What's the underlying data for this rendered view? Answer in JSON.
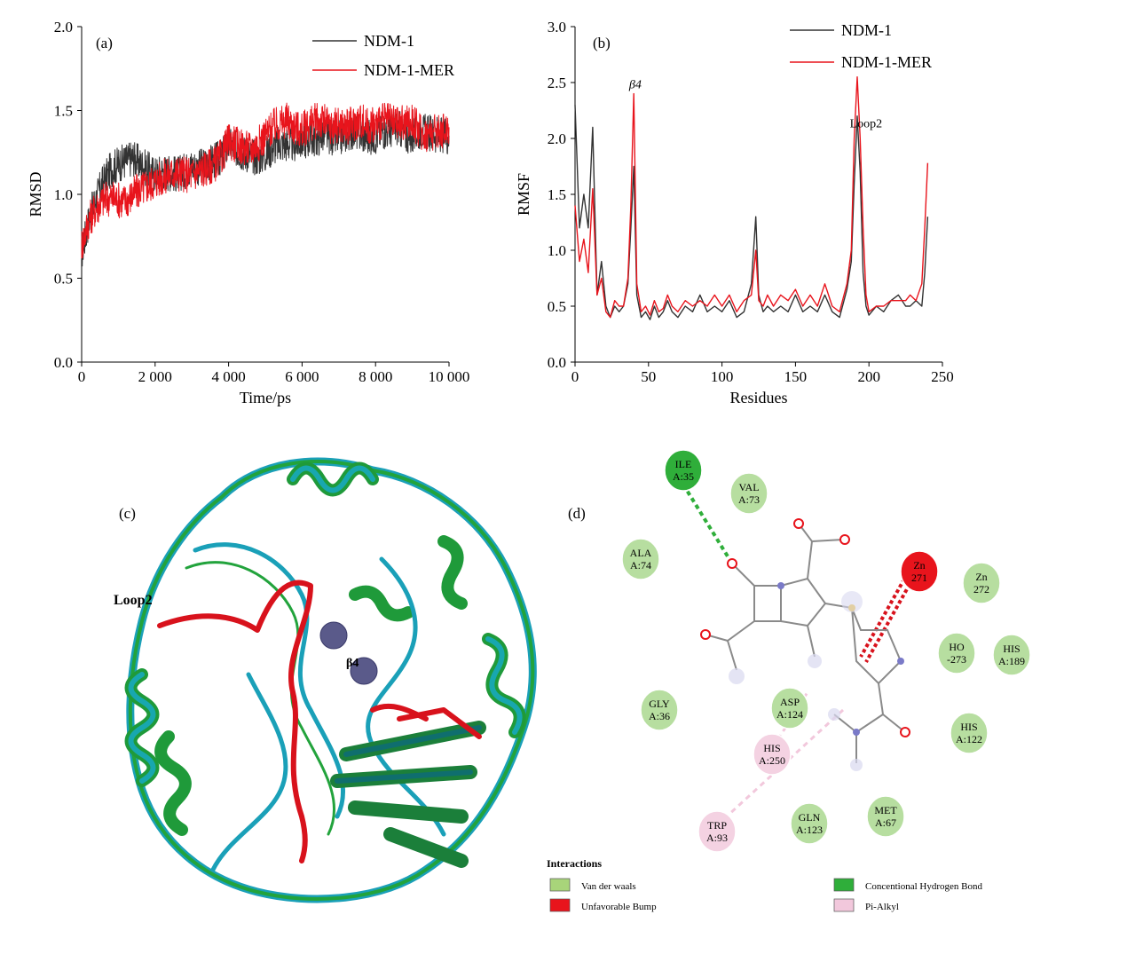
{
  "chart_data": [
    {
      "panel_label": "(a)",
      "type": "line",
      "xlabel": "Time/ps",
      "ylabel": "RMSD",
      "xlim": [
        0,
        10000
      ],
      "ylim": [
        0,
        2.0
      ],
      "x_ticks": [
        "0",
        "2 000",
        "4 000",
        "6 000",
        "8 000",
        "10 000"
      ],
      "y_ticks": [
        "0.0",
        "0.5",
        "1.0",
        "1.5",
        "2.0"
      ],
      "legend_position": "top-right",
      "series": [
        {
          "name": "NDM-1",
          "color": "#333333",
          "x": [
            0,
            200,
            400,
            600,
            800,
            1000,
            1200,
            1400,
            1600,
            1800,
            2000,
            2200,
            2400,
            2600,
            2800,
            3000,
            3200,
            3400,
            3600,
            3800,
            4000,
            4200,
            4400,
            4600,
            4800,
            5000,
            5200,
            5400,
            5600,
            5800,
            6000,
            6200,
            6400,
            6600,
            6800,
            7000,
            7200,
            7400,
            7600,
            7800,
            8000,
            8200,
            8400,
            8600,
            8800,
            9000,
            9200,
            9400,
            9600,
            9800,
            10000
          ],
          "y": [
            0.65,
            0.85,
            0.98,
            1.08,
            1.15,
            1.18,
            1.2,
            1.22,
            1.18,
            1.15,
            1.12,
            1.14,
            1.13,
            1.12,
            1.14,
            1.17,
            1.16,
            1.18,
            1.2,
            1.22,
            1.3,
            1.27,
            1.25,
            1.23,
            1.22,
            1.24,
            1.28,
            1.3,
            1.3,
            1.3,
            1.32,
            1.33,
            1.33,
            1.36,
            1.34,
            1.33,
            1.36,
            1.38,
            1.36,
            1.34,
            1.35,
            1.38,
            1.38,
            1.4,
            1.36,
            1.34,
            1.38,
            1.37,
            1.36,
            1.35,
            1.35
          ]
        },
        {
          "name": "NDM-1-MER",
          "color": "#e8141c",
          "x": [
            0,
            200,
            400,
            600,
            800,
            1000,
            1200,
            1400,
            1600,
            1800,
            2000,
            2200,
            2400,
            2600,
            2800,
            3000,
            3200,
            3400,
            3600,
            3800,
            4000,
            4200,
            4400,
            4600,
            4800,
            5000,
            5200,
            5400,
            5600,
            5800,
            6000,
            6200,
            6400,
            6600,
            6800,
            7000,
            7200,
            7400,
            7600,
            7800,
            8000,
            8200,
            8400,
            8600,
            8800,
            9000,
            9200,
            9400,
            9600,
            9800,
            10000
          ],
          "y": [
            0.7,
            0.85,
            0.92,
            0.97,
            0.98,
            0.97,
            0.96,
            1.0,
            1.03,
            1.05,
            1.08,
            1.1,
            1.12,
            1.13,
            1.12,
            1.12,
            1.14,
            1.16,
            1.18,
            1.22,
            1.32,
            1.3,
            1.28,
            1.27,
            1.3,
            1.35,
            1.4,
            1.42,
            1.44,
            1.4,
            1.38,
            1.42,
            1.44,
            1.43,
            1.4,
            1.42,
            1.4,
            1.42,
            1.44,
            1.4,
            1.42,
            1.44,
            1.43,
            1.42,
            1.42,
            1.44,
            1.38,
            1.36,
            1.37,
            1.38,
            1.4
          ]
        }
      ]
    },
    {
      "panel_label": "(b)",
      "type": "line",
      "xlabel": "Residues",
      "ylabel": "RMSF",
      "xlim": [
        0,
        250
      ],
      "ylim": [
        0,
        3.0
      ],
      "x_ticks": [
        "0",
        "50",
        "100",
        "150",
        "200",
        "250"
      ],
      "y_ticks": [
        "0.0",
        "0.5",
        "1.0",
        "1.5",
        "2.0",
        "2.5",
        "3.0"
      ],
      "legend_position": "top-right",
      "annotations": [
        {
          "text": "β4",
          "x": 41,
          "y": 2.45
        },
        {
          "text": "Loop2",
          "x": 198,
          "y": 2.1
        }
      ],
      "series": [
        {
          "name": "NDM-1",
          "color": "#333333",
          "x": [
            0,
            3,
            6,
            9,
            12,
            15,
            18,
            21,
            24,
            27,
            30,
            33,
            36,
            38,
            40,
            42,
            45,
            48,
            51,
            54,
            57,
            60,
            63,
            66,
            70,
            75,
            80,
            85,
            90,
            95,
            100,
            105,
            110,
            115,
            120,
            123,
            125,
            128,
            131,
            135,
            140,
            145,
            150,
            155,
            160,
            165,
            170,
            175,
            180,
            185,
            188,
            190,
            192,
            194,
            196,
            198,
            200,
            205,
            210,
            215,
            220,
            225,
            228,
            232,
            236,
            238,
            240
          ],
          "y": [
            2.3,
            1.2,
            1.5,
            1.2,
            2.1,
            0.6,
            0.9,
            0.5,
            0.4,
            0.5,
            0.45,
            0.5,
            0.7,
            1.2,
            1.75,
            0.6,
            0.4,
            0.45,
            0.38,
            0.5,
            0.4,
            0.45,
            0.55,
            0.45,
            0.4,
            0.5,
            0.45,
            0.6,
            0.45,
            0.5,
            0.45,
            0.55,
            0.4,
            0.45,
            0.7,
            1.3,
            0.6,
            0.45,
            0.5,
            0.45,
            0.5,
            0.45,
            0.6,
            0.45,
            0.5,
            0.45,
            0.6,
            0.45,
            0.4,
            0.65,
            0.9,
            1.6,
            2.2,
            1.7,
            0.8,
            0.5,
            0.42,
            0.5,
            0.45,
            0.55,
            0.6,
            0.5,
            0.5,
            0.55,
            0.5,
            0.8,
            1.3
          ]
        },
        {
          "name": "NDM-1-MER",
          "color": "#e8141c",
          "x": [
            0,
            3,
            6,
            9,
            12,
            15,
            18,
            21,
            24,
            27,
            30,
            33,
            36,
            38,
            40,
            42,
            45,
            48,
            51,
            54,
            57,
            60,
            63,
            66,
            70,
            75,
            80,
            85,
            90,
            95,
            100,
            105,
            110,
            115,
            120,
            123,
            125,
            128,
            131,
            135,
            140,
            145,
            150,
            155,
            160,
            165,
            170,
            175,
            180,
            185,
            188,
            190,
            192,
            194,
            196,
            198,
            200,
            205,
            210,
            215,
            220,
            225,
            228,
            232,
            236,
            238,
            240
          ],
          "y": [
            1.4,
            0.9,
            1.1,
            0.8,
            1.55,
            0.6,
            0.75,
            0.45,
            0.4,
            0.55,
            0.5,
            0.5,
            0.75,
            1.4,
            2.4,
            0.7,
            0.45,
            0.5,
            0.42,
            0.55,
            0.45,
            0.48,
            0.6,
            0.5,
            0.45,
            0.55,
            0.5,
            0.55,
            0.5,
            0.6,
            0.5,
            0.6,
            0.45,
            0.55,
            0.6,
            1.0,
            0.55,
            0.5,
            0.6,
            0.5,
            0.6,
            0.55,
            0.65,
            0.5,
            0.6,
            0.5,
            0.7,
            0.5,
            0.45,
            0.7,
            1.0,
            2.0,
            2.55,
            2.0,
            1.2,
            0.6,
            0.45,
            0.5,
            0.5,
            0.55,
            0.55,
            0.55,
            0.6,
            0.55,
            0.7,
            1.2,
            1.78
          ]
        }
      ]
    }
  ],
  "panels": {
    "c_label": "(c)",
    "c_loop_label": "Loop2",
    "c_beta_label": "β4",
    "d_label": "(d)"
  },
  "interactions": {
    "title": "Interactions",
    "legend": [
      {
        "label": "Van der waals",
        "color": "#a8d47a"
      },
      {
        "label": "Unfavorable Bump",
        "color": "#e8141c"
      },
      {
        "label": "Concentional Hydrogen Bond",
        "color": "#2fae3a"
      },
      {
        "label": "Pi-Alkyl",
        "color": "#f2c8dc"
      }
    ],
    "residues": [
      {
        "line1": "ILE",
        "line2": "A:35",
        "kind": "hbond"
      },
      {
        "line1": "VAL",
        "line2": "A:73",
        "kind": "vdw"
      },
      {
        "line1": "ALA",
        "line2": "A:74",
        "kind": "vdw"
      },
      {
        "line1": "Zn",
        "line2": "271",
        "kind": "bump"
      },
      {
        "line1": "Zn",
        "line2": "272",
        "kind": "vdw"
      },
      {
        "line1": "HO",
        "line2": "-273",
        "kind": "vdw"
      },
      {
        "line1": "HIS",
        "line2": "A:189",
        "kind": "vdw"
      },
      {
        "line1": "GLY",
        "line2": "A:36",
        "kind": "vdw"
      },
      {
        "line1": "ASP",
        "line2": "A:124",
        "kind": "vdw"
      },
      {
        "line1": "HIS",
        "line2": "A:250",
        "kind": "pialkyl"
      },
      {
        "line1": "HIS",
        "line2": "A:122",
        "kind": "vdw"
      },
      {
        "line1": "TRP",
        "line2": "A:93",
        "kind": "pialkyl"
      },
      {
        "line1": "GLN",
        "line2": "A:123",
        "kind": "vdw"
      },
      {
        "line1": "MET",
        "line2": "A:67",
        "kind": "vdw"
      }
    ]
  }
}
